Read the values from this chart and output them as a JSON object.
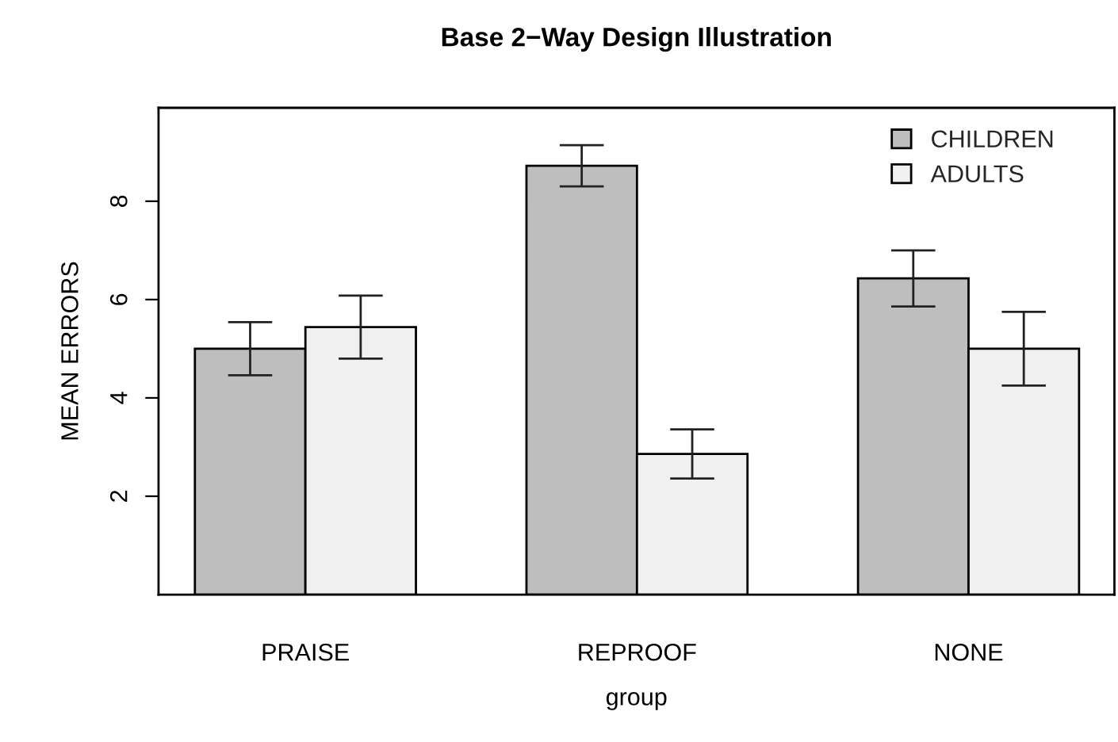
{
  "chart_data": {
    "type": "bar",
    "title": "Base 2−Way Design Illustration",
    "xlabel": "group",
    "ylabel": "MEAN ERRORS",
    "categories": [
      "PRAISE",
      "REPROOF",
      "NONE"
    ],
    "series": [
      {
        "name": "CHILDREN",
        "color": "#bebebe",
        "values": [
          5.0,
          8.72,
          6.43
        ],
        "errors": [
          0.54,
          0.42,
          0.57
        ]
      },
      {
        "name": "ADULTS",
        "color": "#f0f0f0",
        "values": [
          5.44,
          2.86,
          5.0
        ],
        "errors": [
          0.64,
          0.5,
          0.75
        ]
      }
    ],
    "ylim": [
      0,
      9.9
    ],
    "yticks": [
      2,
      4,
      6,
      8
    ],
    "grid": false,
    "legend": "top right"
  }
}
